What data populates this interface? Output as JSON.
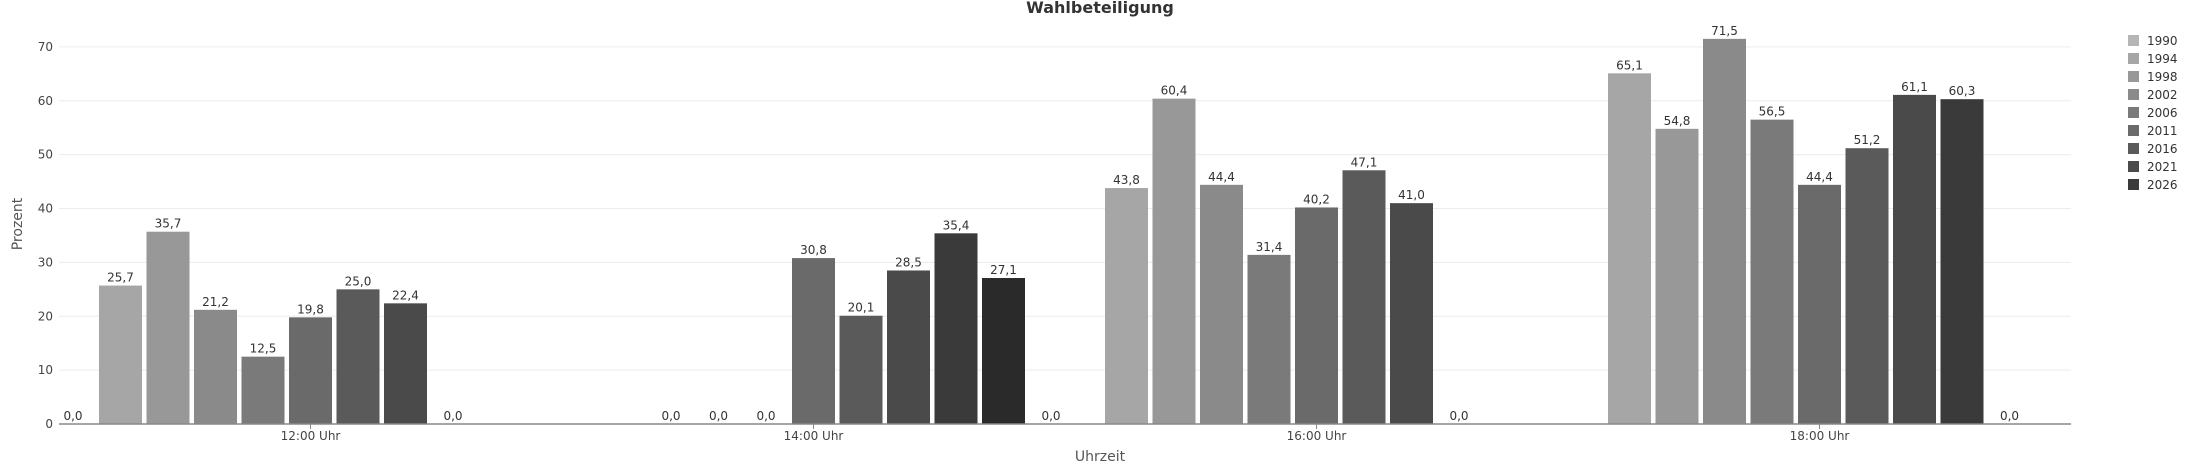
{
  "chart_data": {
    "type": "bar",
    "title": "Wahlbeteiligung",
    "xlabel": "Uhrzeit",
    "ylabel": "Prozent",
    "ylim": [
      0,
      75
    ],
    "yticks": [
      "0",
      "10",
      "20",
      "30",
      "40",
      "50",
      "60",
      "70"
    ],
    "categories": [
      "12:00 Uhr",
      "14:00 Uhr",
      "16:00 Uhr",
      "18:00 Uhr"
    ],
    "grid": true,
    "legend_position": "right",
    "series": [
      {
        "name": "1990",
        "color": "#b5b5b5",
        "values": [
          0,
          null,
          null,
          null
        ],
        "labels": [
          "0,0",
          null,
          null,
          null
        ]
      },
      {
        "name": "1994",
        "color": "#a6a6a6",
        "values": [
          25.7,
          null,
          43.8,
          65.1
        ],
        "labels": [
          "25,7",
          null,
          "43,8",
          "65,1"
        ]
      },
      {
        "name": "1998",
        "color": "#989898",
        "values": [
          35.7,
          0,
          60.4,
          54.8
        ],
        "labels": [
          "35,7",
          "0,0",
          "60,4",
          "54,8"
        ]
      },
      {
        "name": "2002",
        "color": "#8a8a8a",
        "values": [
          21.2,
          0,
          44.4,
          71.5
        ],
        "labels": [
          "21,2",
          "0,0",
          "44,4",
          "71,5"
        ]
      },
      {
        "name": "2006",
        "color": "#7a7a7a",
        "values": [
          12.5,
          0,
          31.4,
          56.5
        ],
        "labels": [
          "12,5",
          "0,0",
          "31,4",
          "56,5"
        ]
      },
      {
        "name": "2011",
        "color": "#6a6a6a",
        "values": [
          19.8,
          30.8,
          40.2,
          44.4
        ],
        "labels": [
          "19,8",
          "30,8",
          "40,2",
          "44,4"
        ]
      },
      {
        "name": "2016",
        "color": "#5a5a5a",
        "values": [
          25.0,
          20.1,
          47.1,
          51.2
        ],
        "labels": [
          "25,0",
          "20,1",
          "47,1",
          "51,2"
        ]
      },
      {
        "name": "2021",
        "color": "#4a4a4a",
        "values": [
          22.4,
          28.5,
          41.0,
          61.1
        ],
        "labels": [
          "22,4",
          "28,5",
          "41,0",
          "61,1"
        ]
      },
      {
        "name": "2026",
        "color": "#3a3a3a",
        "values": [
          0,
          35.4,
          0,
          60.3
        ],
        "labels": [
          "0,0",
          "35,4",
          "0,0",
          "60,3"
        ]
      },
      {
        "name": "",
        "color": "#2a2a2a",
        "values": [
          null,
          27.1,
          null,
          0
        ],
        "labels": [
          null,
          "27,1",
          null,
          "0,0"
        ]
      },
      {
        "name": "",
        "color": "#1a1a1a",
        "values": [
          null,
          0,
          null,
          null
        ],
        "labels": [
          null,
          "0,0",
          null,
          null
        ]
      }
    ]
  }
}
